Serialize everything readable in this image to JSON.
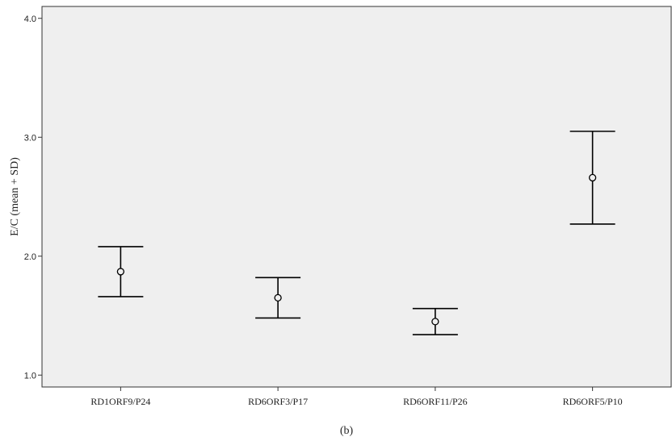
{
  "chart_data": {
    "type": "scatter",
    "ylabel": "E/C (mean + SD)",
    "caption": "(b)",
    "ylim": [
      0.9,
      4.1
    ],
    "y_ticks": [
      "1.0",
      "2.0",
      "3.0",
      "4.0"
    ],
    "grid": false,
    "categories": [
      "RD1ORF9/P24",
      "RD6ORF3/P17",
      "RD6ORF11/P26",
      "RD6ORF5/P10"
    ],
    "points": [
      {
        "category": "RD1ORF9/P24",
        "mean": 1.87,
        "low": 1.66,
        "high": 2.08
      },
      {
        "category": "RD6ORF3/P17",
        "mean": 1.65,
        "low": 1.48,
        "high": 1.82
      },
      {
        "category": "RD6ORF11/P26",
        "mean": 1.45,
        "low": 1.34,
        "high": 1.56
      },
      {
        "category": "RD6ORF5/P10",
        "mean": 2.66,
        "low": 2.27,
        "high": 3.05
      }
    ],
    "colors": {
      "plot_background": "#efefef",
      "marks": "#000000"
    }
  }
}
